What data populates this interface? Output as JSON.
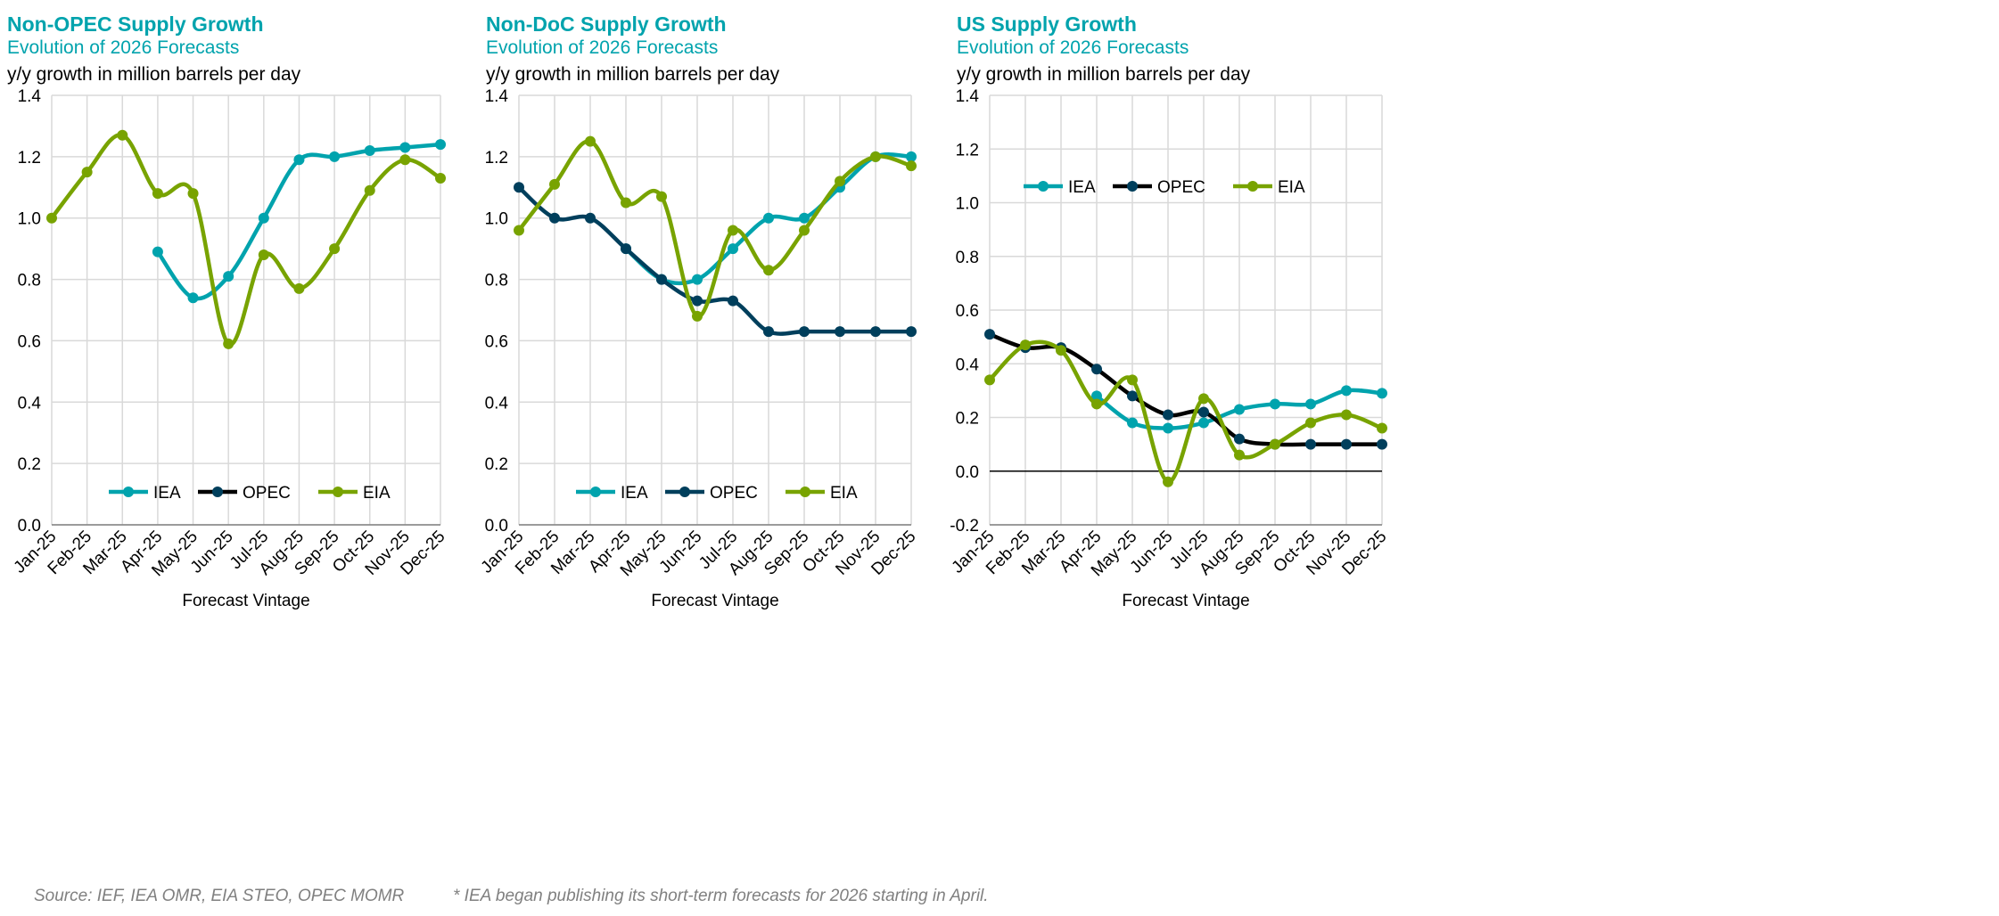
{
  "colors": {
    "IEA": "#00A3AD",
    "OPEC": "#003F5C",
    "EIA": "#78A300"
  },
  "footnotes": {
    "source": "Source: IEF, IEA OMR, EIA STEO, OPEC MOMR",
    "note": "* IEA began publishing its short-term forecasts for 2026 starting in April."
  },
  "chart_data": [
    {
      "type": "line",
      "title": "Non-OPEC Supply Growth",
      "subtitle": "Evolution of 2026 Forecasts",
      "ylabel": "y/y growth in million barrels per day",
      "xlabel": "Forecast Vintage",
      "categories": [
        "Jan-25",
        "Feb-25",
        "Mar-25",
        "Apr-25",
        "May-25",
        "Jun-25",
        "Jul-25",
        "Aug-25",
        "Sep-25",
        "Oct-25",
        "Nov-25",
        "Dec-25"
      ],
      "ylim": [
        0,
        1.4
      ],
      "yticks": [
        "0.0",
        "0.2",
        "0.4",
        "0.6",
        "0.8",
        "1.0",
        "1.2",
        "1.4"
      ],
      "grid": true,
      "legend": "bottom-center",
      "legend_entries": [
        "IEA",
        "OPEC",
        "EIA"
      ],
      "opec_line_color": "#000000",
      "series": [
        {
          "name": "IEA",
          "values": [
            null,
            null,
            null,
            0.89,
            0.74,
            0.81,
            1.0,
            1.19,
            1.2,
            1.22,
            1.23,
            1.24
          ]
        },
        {
          "name": "OPEC",
          "values": [
            null,
            null,
            null,
            null,
            null,
            null,
            null,
            null,
            null,
            null,
            null,
            null
          ]
        },
        {
          "name": "EIA",
          "values": [
            1.0,
            1.15,
            1.27,
            1.08,
            1.08,
            0.59,
            0.88,
            0.77,
            0.9,
            1.09,
            1.19,
            1.13
          ]
        }
      ]
    },
    {
      "type": "line",
      "title": "Non-DoC Supply Growth",
      "subtitle": "Evolution of 2026 Forecasts",
      "ylabel": "y/y growth in million barrels per day",
      "xlabel": "Forecast Vintage",
      "categories": [
        "Jan-25",
        "Feb-25",
        "Mar-25",
        "Apr-25",
        "May-25",
        "Jun-25",
        "Jul-25",
        "Aug-25",
        "Sep-25",
        "Oct-25",
        "Nov-25",
        "Dec-25"
      ],
      "ylim": [
        0,
        1.4
      ],
      "yticks": [
        "0.0",
        "0.2",
        "0.4",
        "0.6",
        "0.8",
        "1.0",
        "1.2",
        "1.4"
      ],
      "grid": true,
      "legend": "bottom-center",
      "legend_entries": [
        "IEA",
        "OPEC",
        "EIA"
      ],
      "opec_line_color": "#003F5C",
      "series": [
        {
          "name": "IEA",
          "values": [
            null,
            null,
            null,
            0.9,
            0.8,
            0.8,
            0.9,
            1.0,
            1.0,
            1.1,
            1.2,
            1.2
          ]
        },
        {
          "name": "OPEC",
          "values": [
            1.1,
            1.0,
            1.0,
            0.9,
            0.8,
            0.73,
            0.73,
            0.63,
            0.63,
            0.63,
            0.63,
            0.63
          ]
        },
        {
          "name": "EIA",
          "values": [
            0.96,
            1.11,
            1.25,
            1.05,
            1.07,
            0.68,
            0.96,
            0.83,
            0.96,
            1.12,
            1.2,
            1.17
          ]
        }
      ]
    },
    {
      "type": "line",
      "title": "US Supply Growth",
      "subtitle": "Evolution of 2026 Forecasts",
      "ylabel": "y/y growth in million barrels per day",
      "xlabel": "Forecast Vintage",
      "categories": [
        "Jan-25",
        "Feb-25",
        "Mar-25",
        "Apr-25",
        "May-25",
        "Jun-25",
        "Jul-25",
        "Aug-25",
        "Sep-25",
        "Oct-25",
        "Nov-25",
        "Dec-25"
      ],
      "ylim": [
        -0.2,
        1.4
      ],
      "yticks": [
        "-0.2",
        "0.0",
        "0.2",
        "0.4",
        "0.6",
        "0.8",
        "1.0",
        "1.2",
        "1.4"
      ],
      "grid": true,
      "legend": "top-left",
      "legend_entries": [
        "IEA",
        "OPEC",
        "EIA"
      ],
      "opec_line_color": "#000000",
      "series": [
        {
          "name": "IEA",
          "values": [
            null,
            null,
            null,
            0.28,
            0.18,
            0.16,
            0.18,
            0.23,
            0.25,
            0.25,
            0.3,
            0.29
          ]
        },
        {
          "name": "OPEC",
          "values": [
            0.51,
            0.46,
            0.46,
            0.38,
            0.28,
            0.21,
            0.22,
            0.12,
            0.1,
            0.1,
            0.1,
            0.1
          ]
        },
        {
          "name": "EIA",
          "values": [
            0.34,
            0.47,
            0.45,
            0.25,
            0.34,
            -0.04,
            0.27,
            0.06,
            0.1,
            0.18,
            0.21,
            0.16
          ]
        }
      ]
    }
  ]
}
